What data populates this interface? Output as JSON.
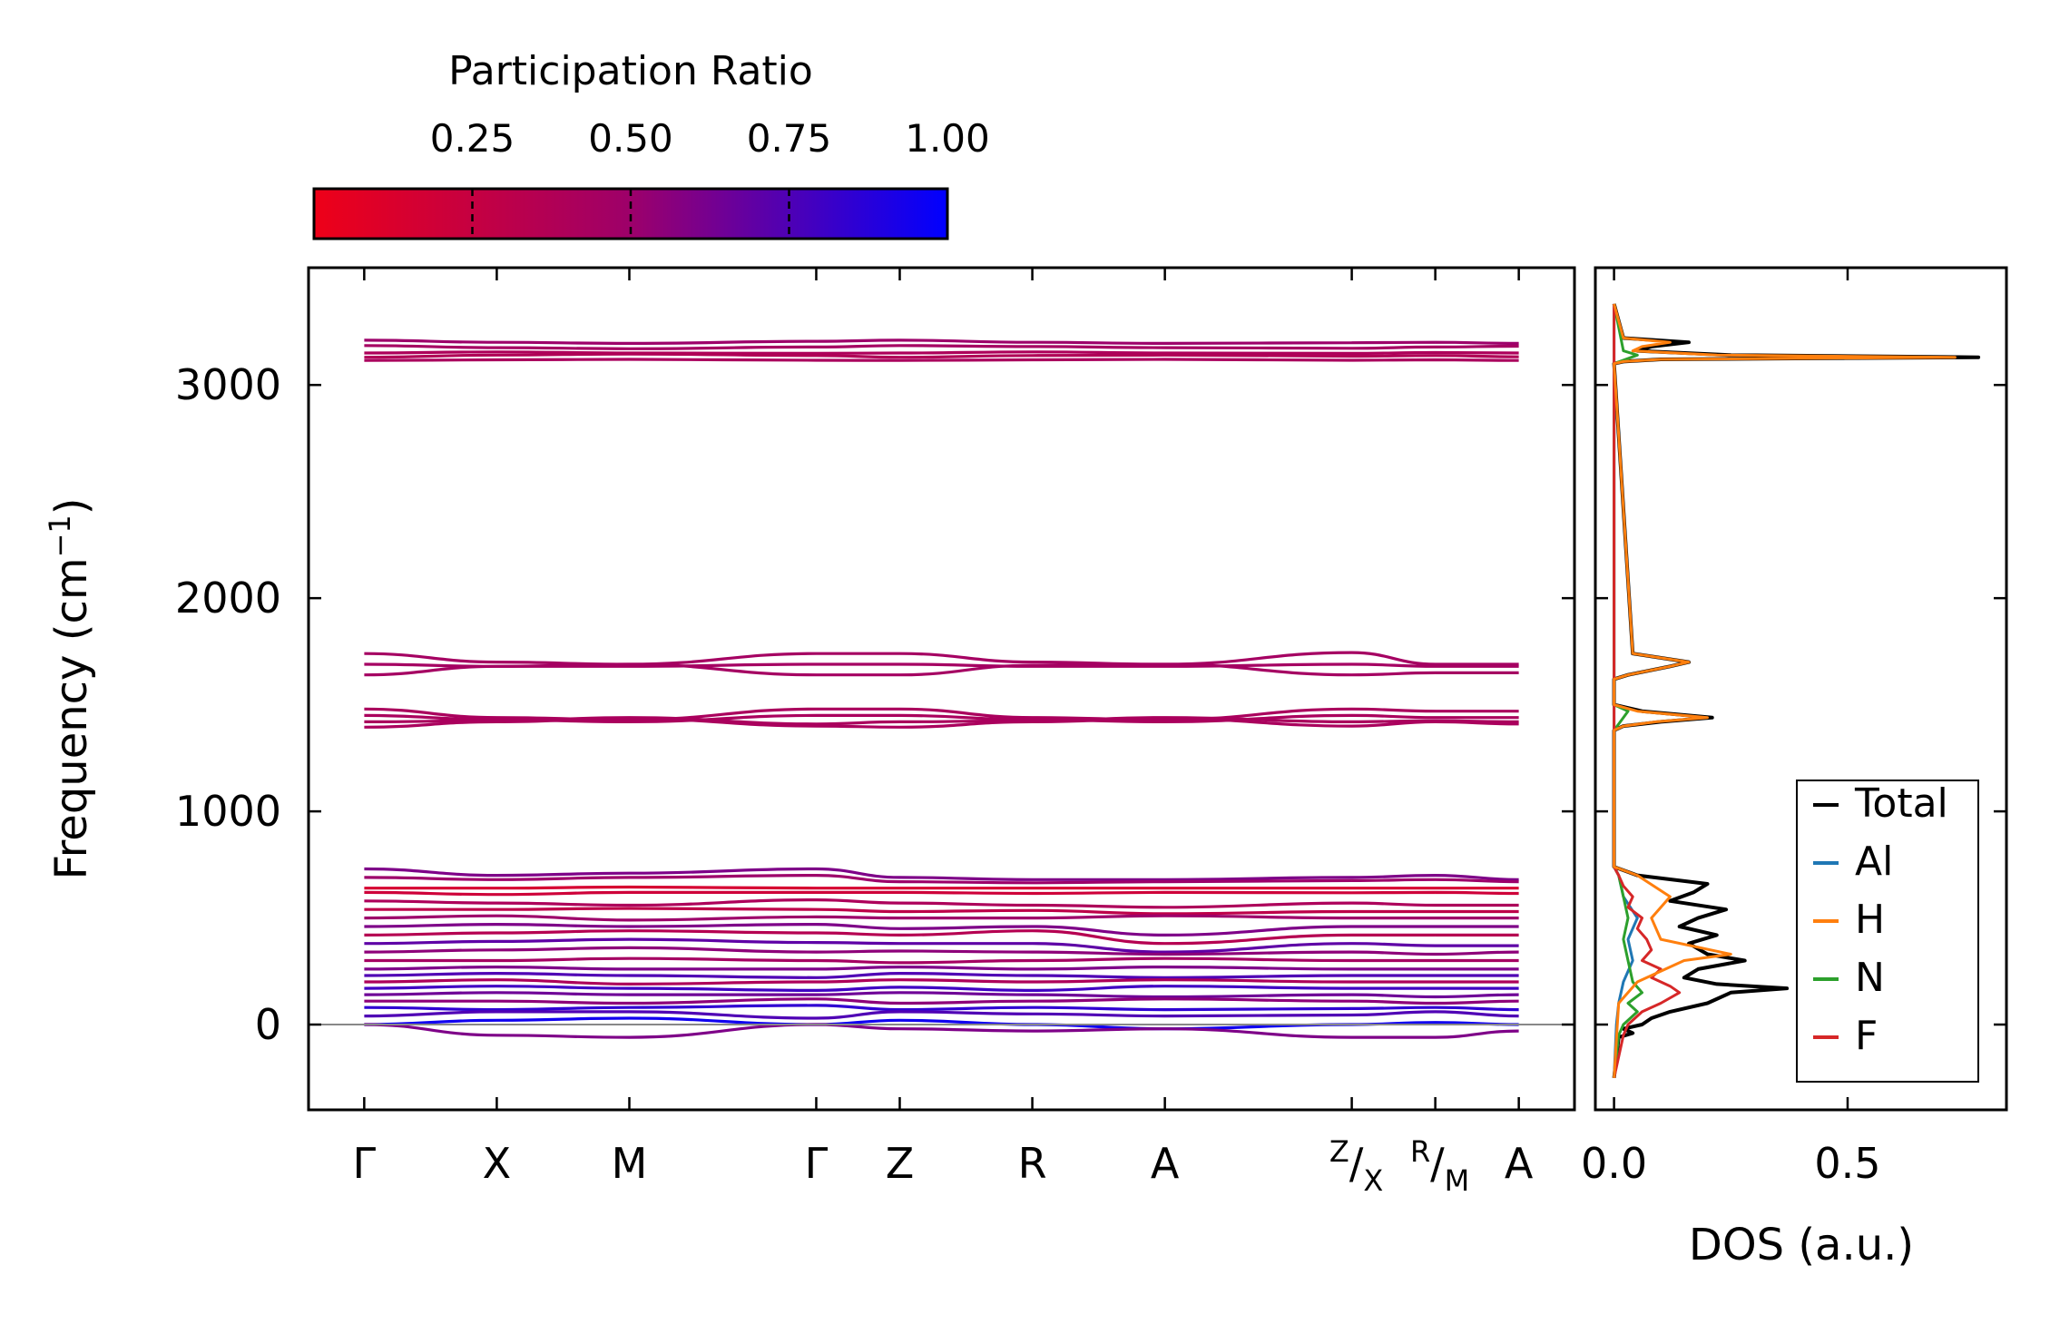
{
  "chart_data": {
    "type": "line",
    "colorbar": {
      "title": "Participation Ratio",
      "range": [
        0.0,
        1.0
      ],
      "ticks": [
        0.25,
        0.5,
        0.75,
        1.0
      ],
      "tick_labels": [
        "0.25",
        "0.50",
        "0.75",
        "1.00"
      ],
      "colors": {
        "low": "#ee0018",
        "mid": "#9d006a",
        "high": "#0000ff"
      }
    },
    "band_panel": {
      "ylabel": "Frequency (cm",
      "ylabel_sup": "−1",
      "ylabel_close": ")",
      "ylim": [
        -400,
        3550
      ],
      "yticks": [
        0,
        1000,
        2000,
        3000
      ],
      "ytick_labels": [
        "0",
        "1000",
        "2000",
        "3000"
      ],
      "kpath_labels": [
        {
          "label": "Γ",
          "x": 0.0
        },
        {
          "label": "X",
          "x": 1.0
        },
        {
          "label": "M",
          "x": 2.0
        },
        {
          "label": "Γ",
          "x": 3.41
        },
        {
          "label": "Z",
          "x": 4.04
        },
        {
          "label": "R",
          "x": 5.04
        },
        {
          "label": "A",
          "x": 6.04
        },
        {
          "label": "Z/X",
          "x": 7.45,
          "x2": 8.08,
          "pre": "Z",
          "mid": "/",
          "post": "X"
        },
        {
          "label": "R/M",
          "x": 8.08,
          "x2": 8.71,
          "pre": "R",
          "mid": "/",
          "post": "M"
        },
        {
          "label": "A",
          "x": 8.71
        }
      ],
      "kticks": [
        0.0,
        1.0,
        2.0,
        3.41,
        4.04,
        5.04,
        6.04,
        7.45,
        8.08,
        8.71
      ],
      "segment_breaks": [
        7.45,
        8.08
      ],
      "xlim": [
        -0.42,
        9.13
      ],
      "bands": [
        {
          "group": "high",
          "pr": 0.5,
          "values": [
            3210,
            3200,
            3195,
            3205,
            3210,
            3200,
            3195,
            3198,
            3200,
            3195
          ]
        },
        {
          "group": "high",
          "pr": 0.45,
          "values": [
            3185,
            3175,
            3170,
            3178,
            3185,
            3180,
            3175,
            3172,
            3178,
            3182
          ]
        },
        {
          "group": "high",
          "pr": 0.4,
          "values": [
            3150,
            3155,
            3150,
            3148,
            3150,
            3155,
            3150,
            3148,
            3152,
            3150
          ]
        },
        {
          "group": "high",
          "pr": 0.38,
          "values": [
            3130,
            3140,
            3145,
            3138,
            3130,
            3138,
            3140,
            3135,
            3138,
            3132
          ]
        },
        {
          "group": "high",
          "pr": 0.42,
          "values": [
            3115,
            3118,
            3120,
            3116,
            3115,
            3118,
            3120,
            3116,
            3118,
            3115
          ]
        },
        {
          "group": "mid",
          "pr": 0.45,
          "values": [
            1740,
            1700,
            1690,
            1740,
            1740,
            1700,
            1690,
            1745,
            1690,
            1690
          ]
        },
        {
          "group": "mid",
          "pr": 0.45,
          "values": [
            1690,
            1680,
            1680,
            1690,
            1690,
            1680,
            1680,
            1690,
            1680,
            1680
          ]
        },
        {
          "group": "mid",
          "pr": 0.45,
          "values": [
            1640,
            1680,
            1690,
            1640,
            1640,
            1685,
            1690,
            1640,
            1650,
            1650
          ]
        },
        {
          "group": "mid",
          "pr": 0.42,
          "values": [
            1480,
            1440,
            1430,
            1480,
            1480,
            1440,
            1430,
            1480,
            1470,
            1470
          ]
        },
        {
          "group": "mid",
          "pr": 0.42,
          "values": [
            1450,
            1430,
            1420,
            1450,
            1450,
            1430,
            1420,
            1450,
            1440,
            1440
          ]
        },
        {
          "group": "mid",
          "pr": 0.42,
          "values": [
            1420,
            1425,
            1440,
            1410,
            1420,
            1425,
            1440,
            1420,
            1425,
            1420
          ]
        },
        {
          "group": "mid",
          "pr": 0.42,
          "values": [
            1395,
            1420,
            1435,
            1400,
            1395,
            1420,
            1435,
            1400,
            1420,
            1410
          ]
        },
        {
          "group": "low",
          "pr": 0.6,
          "values": [
            730,
            700,
            710,
            730,
            690,
            680,
            680,
            690,
            700,
            680
          ]
        },
        {
          "group": "low",
          "pr": 0.5,
          "values": [
            690,
            680,
            690,
            700,
            670,
            665,
            670,
            675,
            680,
            670
          ]
        },
        {
          "group": "low",
          "pr": 0.15,
          "values": [
            640,
            640,
            645,
            640,
            640,
            640,
            640,
            640,
            640,
            640
          ]
        },
        {
          "group": "low",
          "pr": 0.2,
          "values": [
            620,
            610,
            620,
            620,
            620,
            615,
            620,
            618,
            620,
            615
          ]
        },
        {
          "group": "low",
          "pr": 0.4,
          "values": [
            580,
            570,
            560,
            585,
            570,
            560,
            550,
            570,
            560,
            560
          ]
        },
        {
          "group": "low",
          "pr": 0.3,
          "values": [
            540,
            540,
            545,
            540,
            530,
            535,
            520,
            530,
            530,
            530
          ]
        },
        {
          "group": "low",
          "pr": 0.5,
          "values": [
            500,
            510,
            490,
            505,
            500,
            500,
            510,
            500,
            500,
            500
          ]
        },
        {
          "group": "low",
          "pr": 0.6,
          "values": [
            460,
            470,
            460,
            470,
            450,
            460,
            420,
            460,
            460,
            460
          ]
        },
        {
          "group": "low",
          "pr": 0.35,
          "values": [
            420,
            430,
            440,
            430,
            420,
            440,
            380,
            420,
            420,
            420
          ]
        },
        {
          "group": "low",
          "pr": 0.7,
          "values": [
            380,
            390,
            400,
            385,
            380,
            380,
            340,
            380,
            370,
            370
          ]
        },
        {
          "group": "low",
          "pr": 0.55,
          "values": [
            340,
            350,
            360,
            340,
            345,
            340,
            330,
            340,
            330,
            340
          ]
        },
        {
          "group": "low",
          "pr": 0.45,
          "values": [
            300,
            300,
            310,
            300,
            290,
            300,
            310,
            300,
            300,
            300
          ]
        },
        {
          "group": "low",
          "pr": 0.6,
          "values": [
            260,
            270,
            260,
            260,
            270,
            260,
            270,
            260,
            260,
            260
          ]
        },
        {
          "group": "low",
          "pr": 0.75,
          "values": [
            230,
            240,
            230,
            220,
            240,
            230,
            220,
            230,
            230,
            230
          ]
        },
        {
          "group": "low",
          "pr": 0.4,
          "values": [
            200,
            210,
            190,
            200,
            210,
            200,
            210,
            200,
            200,
            200
          ]
        },
        {
          "group": "low",
          "pr": 0.8,
          "values": [
            170,
            180,
            170,
            160,
            175,
            160,
            180,
            170,
            170,
            170
          ]
        },
        {
          "group": "low",
          "pr": 0.65,
          "values": [
            140,
            150,
            140,
            140,
            150,
            140,
            130,
            140,
            130,
            140
          ]
        },
        {
          "group": "low",
          "pr": 0.55,
          "values": [
            110,
            110,
            100,
            120,
            100,
            110,
            120,
            110,
            100,
            110
          ]
        },
        {
          "group": "low",
          "pr": 0.85,
          "values": [
            80,
            70,
            80,
            90,
            70,
            80,
            70,
            75,
            80,
            70
          ]
        },
        {
          "group": "low",
          "pr": 0.75,
          "values": [
            40,
            60,
            60,
            30,
            60,
            50,
            40,
            45,
            60,
            40
          ]
        },
        {
          "group": "low",
          "pr": 0.95,
          "values": [
            0,
            20,
            30,
            0,
            20,
            0,
            -20,
            0,
            10,
            0
          ]
        },
        {
          "group": "low",
          "pr": 0.6,
          "values": [
            0,
            -50,
            -60,
            0,
            -20,
            -30,
            -20,
            -60,
            -60,
            -30
          ]
        }
      ]
    },
    "dos_panel": {
      "xlabel": "DOS (a.u.)",
      "xlim": [
        -0.04,
        0.84
      ],
      "xticks": [
        0.0,
        0.5
      ],
      "xtick_labels": [
        "0.0",
        "0.5"
      ],
      "ylim": [
        -400,
        3550
      ],
      "legend": {
        "position": "lower right",
        "entries": [
          {
            "label": "Total",
            "color": "#000000"
          },
          {
            "label": "Al",
            "color": "#1f77b4"
          },
          {
            "label": "H",
            "color": "#ff7f0e"
          },
          {
            "label": "N",
            "color": "#2ca02c"
          },
          {
            "label": "F",
            "color": "#d62728"
          }
        ]
      },
      "series": [
        {
          "name": "Total",
          "color": "#000000",
          "freq": [
            -250,
            -60,
            -40,
            -20,
            0,
            30,
            60,
            100,
            150,
            170,
            190,
            220,
            260,
            300,
            330,
            380,
            420,
            460,
            500,
            540,
            580,
            620,
            660,
            700,
            740,
            1380,
            1400,
            1420,
            1440,
            1470,
            1500,
            1620,
            1640,
            1680,
            1700,
            1740,
            3100,
            3110,
            3120,
            3130,
            3140,
            3160,
            3180,
            3200,
            3220,
            3380
          ],
          "dos": [
            0,
            0.01,
            0.04,
            0.02,
            0.06,
            0.08,
            0.12,
            0.2,
            0.25,
            0.37,
            0.22,
            0.15,
            0.18,
            0.28,
            0.2,
            0.16,
            0.22,
            0.14,
            0.18,
            0.24,
            0.12,
            0.17,
            0.2,
            0.05,
            0,
            0,
            0.02,
            0.1,
            0.21,
            0.06,
            0,
            0,
            0.03,
            0.12,
            0.16,
            0.04,
            0,
            0.02,
            0.1,
            0.78,
            0.25,
            0.05,
            0.08,
            0.16,
            0.02,
            0
          ]
        },
        {
          "name": "Al",
          "color": "#1f77b4",
          "freq": [
            -250,
            0,
            100,
            200,
            300,
            400,
            500,
            600,
            700,
            740,
            3380
          ],
          "dos": [
            0,
            0.005,
            0.01,
            0.02,
            0.04,
            0.03,
            0.05,
            0.02,
            0.01,
            0,
            0
          ]
        },
        {
          "name": "H",
          "color": "#ff7f0e",
          "freq": [
            -250,
            100,
            200,
            300,
            330,
            400,
            500,
            600,
            700,
            740,
            1380,
            1400,
            1420,
            1440,
            1470,
            1500,
            1620,
            1640,
            1680,
            1700,
            1740,
            3100,
            3110,
            3120,
            3130,
            3140,
            3160,
            3180,
            3200,
            3220,
            3380
          ],
          "dos": [
            0,
            0.01,
            0.05,
            0.15,
            0.25,
            0.1,
            0.08,
            0.12,
            0.05,
            0,
            0,
            0.02,
            0.09,
            0.2,
            0.05,
            0,
            0,
            0.03,
            0.12,
            0.16,
            0.04,
            0,
            0.02,
            0.1,
            0.73,
            0.22,
            0.04,
            0.06,
            0.12,
            0.02,
            0
          ]
        },
        {
          "name": "N",
          "color": "#2ca02c",
          "freq": [
            -250,
            -50,
            0,
            60,
            100,
            150,
            200,
            300,
            400,
            500,
            600,
            700,
            740,
            1380,
            1440,
            1470,
            1500,
            3100,
            3140,
            3160,
            3380
          ],
          "dos": [
            0,
            0.01,
            0.02,
            0.05,
            0.03,
            0.06,
            0.04,
            0.03,
            0.02,
            0.03,
            0.02,
            0.01,
            0,
            0,
            0.02,
            0.03,
            0,
            0,
            0.05,
            0.02,
            0
          ]
        },
        {
          "name": "F",
          "color": "#d62728",
          "freq": [
            -250,
            -50,
            0,
            60,
            100,
            150,
            180,
            220,
            260,
            300,
            350,
            400,
            450,
            500,
            550,
            600,
            650,
            700,
            740,
            3380
          ],
          "dos": [
            0,
            0.02,
            0.03,
            0.06,
            0.1,
            0.14,
            0.12,
            0.08,
            0.1,
            0.06,
            0.08,
            0.07,
            0.05,
            0.06,
            0.03,
            0.04,
            0.02,
            0.01,
            0,
            0
          ]
        }
      ]
    }
  }
}
